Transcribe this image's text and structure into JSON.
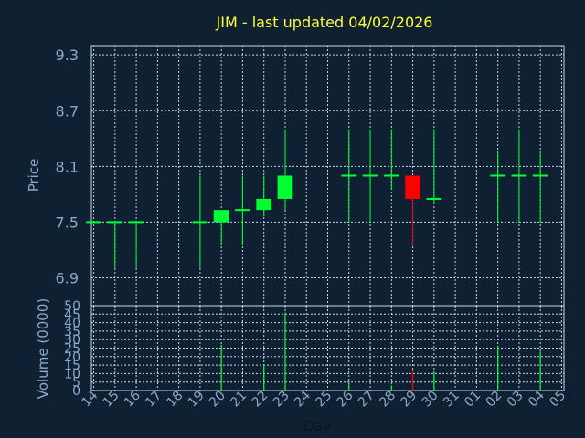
{
  "title": "JIM - last updated 04/02/2026",
  "colors": {
    "background": "#0f2033",
    "grid": "#c8d4e4",
    "text": "#8aa8c8",
    "title": "#ffff33",
    "up": "#00ff33",
    "down": "#ff0000"
  },
  "chart_data": [
    {
      "type": "candlestick",
      "ylabel": "Price",
      "ylim": [
        6.6,
        9.4
      ],
      "yticks": [
        "9.3",
        "8.7",
        "8.1",
        "7.5",
        "6.9"
      ],
      "grid": true,
      "x": [
        "14",
        "15",
        "16",
        "17",
        "18",
        "19",
        "20",
        "21",
        "22",
        "23",
        "24",
        "25",
        "26",
        "27",
        "28",
        "29",
        "30",
        "31",
        "01",
        "02",
        "03",
        "04",
        "05"
      ],
      "candles": [
        {
          "day": "14",
          "open": 7.5,
          "high": 7.5,
          "low": 7.5,
          "close": 7.5
        },
        {
          "day": "15",
          "open": 7.5,
          "high": 7.5,
          "low": 7.0,
          "close": 7.5
        },
        {
          "day": "16",
          "open": 7.5,
          "high": 7.5,
          "low": 7.0,
          "close": 7.5
        },
        {
          "day": "19",
          "open": 7.5,
          "high": 8.0,
          "low": 7.0,
          "close": 7.5
        },
        {
          "day": "20",
          "open": 7.5,
          "high": 7.63,
          "low": 7.25,
          "close": 7.63
        },
        {
          "day": "21",
          "open": 7.63,
          "high": 8.0,
          "low": 7.25,
          "close": 7.63
        },
        {
          "day": "22",
          "open": 7.63,
          "high": 8.0,
          "low": 7.56,
          "close": 7.75
        },
        {
          "day": "23",
          "open": 7.75,
          "high": 8.5,
          "low": 7.63,
          "close": 8.0
        },
        {
          "day": "26",
          "open": 8.0,
          "high": 8.5,
          "low": 7.5,
          "close": 8.0
        },
        {
          "day": "27",
          "open": 8.0,
          "high": 8.5,
          "low": 7.5,
          "close": 8.0
        },
        {
          "day": "28",
          "open": 8.0,
          "high": 8.5,
          "low": 7.85,
          "close": 8.0
        },
        {
          "day": "29",
          "open": 8.0,
          "high": 8.0,
          "low": 7.25,
          "close": 7.75
        },
        {
          "day": "30",
          "open": 7.75,
          "high": 8.5,
          "low": 7.7,
          "close": 7.75
        },
        {
          "day": "02",
          "open": 8.0,
          "high": 8.25,
          "low": 7.5,
          "close": 8.0
        },
        {
          "day": "03",
          "open": 8.0,
          "high": 8.5,
          "low": 7.5,
          "close": 8.0
        },
        {
          "day": "04",
          "open": 8.0,
          "high": 8.25,
          "low": 7.5,
          "close": 8.0
        }
      ]
    },
    {
      "type": "bar",
      "ylabel": "Volume (0000)",
      "xlabel": "Day",
      "ylim": [
        0,
        50
      ],
      "yticks": [
        "50",
        "45",
        "40",
        "35",
        "30",
        "25",
        "20",
        "15",
        "10",
        "5",
        "0"
      ],
      "grid": true,
      "categories": [
        "20",
        "22",
        "23",
        "26",
        "28",
        "29",
        "30",
        "02",
        "04"
      ],
      "values": [
        27,
        15,
        46,
        5,
        3,
        12,
        11,
        26,
        23
      ],
      "directions": [
        "up",
        "up",
        "up",
        "up",
        "up",
        "down",
        "up",
        "up",
        "up"
      ]
    }
  ]
}
